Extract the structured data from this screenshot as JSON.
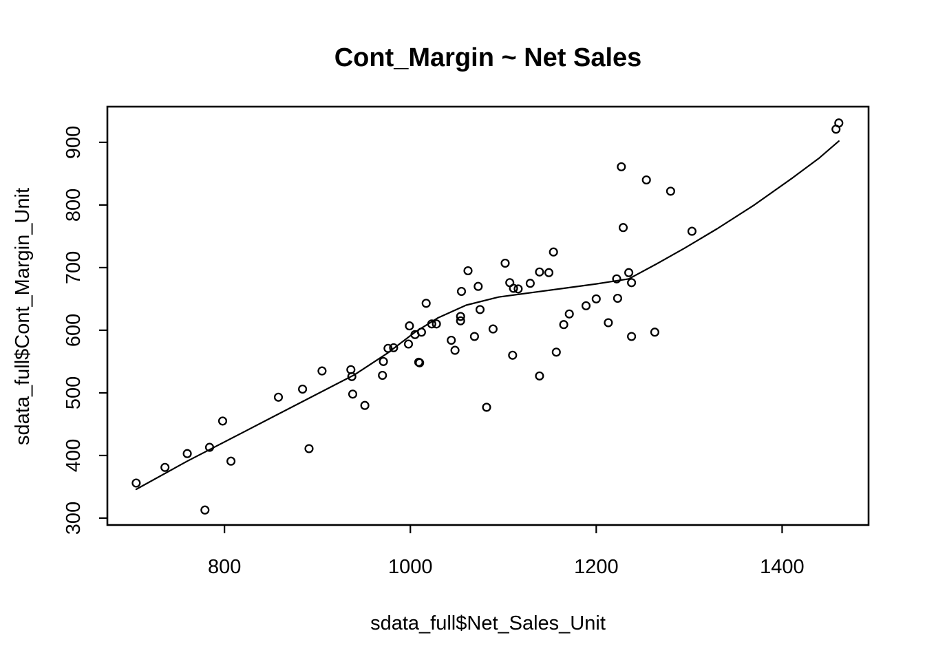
{
  "figure": {
    "background_color": "#ffffff",
    "foreground_color": "#000000"
  },
  "chart_data": {
    "type": "scatter",
    "title": "Cont_Margin ~ Net Sales",
    "xlabel": "sdata_full$Net_Sales_Unit",
    "ylabel": "sdata_full$Cont_Margin_Unit",
    "x_ticks": [
      800,
      1000,
      1200,
      1400
    ],
    "y_ticks": [
      300,
      400,
      500,
      600,
      700,
      800,
      900
    ],
    "xlim": [
      674,
      1493
    ],
    "ylim": [
      289,
      957
    ],
    "grid": "off",
    "legend": "none",
    "marker": "open-circle",
    "series": [
      {
        "name": "observations",
        "type": "scatter",
        "points": [
          [
            705,
            356
          ],
          [
            736,
            381
          ],
          [
            760,
            403
          ],
          [
            784,
            413
          ],
          [
            779,
            313
          ],
          [
            798,
            455
          ],
          [
            807,
            391
          ],
          [
            858,
            493
          ],
          [
            884,
            506
          ],
          [
            891,
            411
          ],
          [
            905,
            535
          ],
          [
            936,
            537
          ],
          [
            937,
            526
          ],
          [
            938,
            498
          ],
          [
            951,
            480
          ],
          [
            970,
            528
          ],
          [
            971,
            550
          ],
          [
            976,
            571
          ],
          [
            982,
            572
          ],
          [
            998,
            578
          ],
          [
            999,
            607
          ],
          [
            1005,
            593
          ],
          [
            1012,
            597
          ],
          [
            1009,
            549
          ],
          [
            1010,
            548
          ],
          [
            1017,
            643
          ],
          [
            1023,
            610
          ],
          [
            1028,
            610
          ],
          [
            1044,
            584
          ],
          [
            1048,
            568
          ],
          [
            1054,
            622
          ],
          [
            1054,
            615
          ],
          [
            1055,
            662
          ],
          [
            1062,
            695
          ],
          [
            1069,
            590
          ],
          [
            1073,
            670
          ],
          [
            1075,
            633
          ],
          [
            1082,
            477
          ],
          [
            1089,
            602
          ],
          [
            1102,
            707
          ],
          [
            1107,
            676
          ],
          [
            1111,
            667
          ],
          [
            1116,
            666
          ],
          [
            1110,
            560
          ],
          [
            1129,
            675
          ],
          [
            1139,
            693
          ],
          [
            1149,
            692
          ],
          [
            1139,
            527
          ],
          [
            1154,
            725
          ],
          [
            1157,
            565
          ],
          [
            1165,
            609
          ],
          [
            1171,
            626
          ],
          [
            1189,
            639
          ],
          [
            1200,
            650
          ],
          [
            1213,
            612
          ],
          [
            1223,
            651
          ],
          [
            1222,
            682
          ],
          [
            1235,
            692
          ],
          [
            1238,
            676
          ],
          [
            1227,
            861
          ],
          [
            1229,
            764
          ],
          [
            1238,
            590
          ],
          [
            1254,
            840
          ],
          [
            1263,
            597
          ],
          [
            1280,
            822
          ],
          [
            1303,
            758
          ],
          [
            1458,
            921
          ],
          [
            1461,
            931
          ]
        ]
      },
      {
        "name": "lowess-smooth",
        "type": "line",
        "points": [
          [
            705,
            346
          ],
          [
            760,
            391
          ],
          [
            820,
            437
          ],
          [
            880,
            483
          ],
          [
            940,
            529
          ],
          [
            975,
            563
          ],
          [
            1005,
            597
          ],
          [
            1030,
            620
          ],
          [
            1060,
            640
          ],
          [
            1095,
            653
          ],
          [
            1130,
            660
          ],
          [
            1165,
            667
          ],
          [
            1200,
            674
          ],
          [
            1235,
            682
          ],
          [
            1265,
            706
          ],
          [
            1295,
            731
          ],
          [
            1330,
            762
          ],
          [
            1370,
            800
          ],
          [
            1410,
            842
          ],
          [
            1440,
            875
          ],
          [
            1461,
            902
          ]
        ]
      }
    ]
  }
}
